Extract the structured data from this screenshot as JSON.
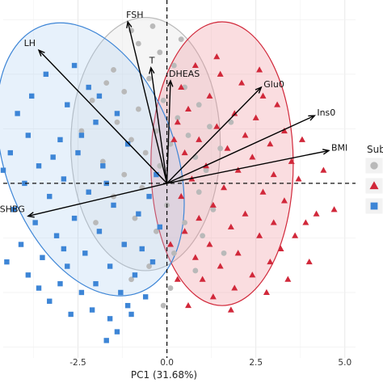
{
  "chart_data": {
    "type": "scatter",
    "subtype": "PCA biplot",
    "title": "",
    "xlabel": "PC1 (31.68%)",
    "ylabel": "",
    "xlim": [
      -4.6,
      5.3
    ],
    "ylim": [
      -4.0,
      4.2
    ],
    "x_ticks": [
      -2.5,
      0.0,
      2.5,
      5.0
    ],
    "x_tick_labels": [
      "-2.5",
      "0.0",
      "2.5",
      "5.0"
    ],
    "grid": true,
    "reference_lines": {
      "x": 0,
      "y": 0,
      "style": "dashed"
    },
    "legend": {
      "title": "Sub",
      "position": "right",
      "entries": 3
    },
    "colors": {
      "grey": "#b9b9b9",
      "red": "#d1283a",
      "blue": "#3d85d6"
    },
    "loadings": [
      {
        "label": "FSH",
        "x": -1.1,
        "y": 3.7
      },
      {
        "label": "LH",
        "x": -3.6,
        "y": 3.05
      },
      {
        "label": "T",
        "x": -0.45,
        "y": 2.65
      },
      {
        "label": "DHEAS",
        "x": 0.1,
        "y": 2.35
      },
      {
        "label": "Glu0",
        "x": 2.65,
        "y": 2.2
      },
      {
        "label": "Ins0",
        "x": 4.15,
        "y": 1.55
      },
      {
        "label": "BMI",
        "x": 4.55,
        "y": 0.75
      },
      {
        "label": "SHBG",
        "x": -3.9,
        "y": -0.75
      }
    ],
    "ellipses": [
      {
        "group": "grey",
        "cx": -0.6,
        "cy": 0.9,
        "rx": 2.1,
        "ry": 2.9,
        "angle": 0
      },
      {
        "group": "red",
        "cx": 1.55,
        "cy": 0.45,
        "rx": 2.0,
        "ry": 3.25,
        "angle": 0
      },
      {
        "group": "blue",
        "cx": -2.15,
        "cy": 0.55,
        "rx": 2.4,
        "ry": 3.25,
        "angle": -20
      }
    ],
    "series": [
      {
        "group": "grey",
        "marker": "circle",
        "points": [
          [
            -1.0,
            3.5
          ],
          [
            -0.8,
            3.2
          ],
          [
            -0.2,
            3.0
          ],
          [
            0.2,
            2.7
          ],
          [
            -1.5,
            2.6
          ],
          [
            -0.5,
            2.4
          ],
          [
            0.5,
            2.2
          ],
          [
            -1.2,
            2.1
          ],
          [
            -0.1,
            1.9
          ],
          [
            0.9,
            1.8
          ],
          [
            -0.8,
            1.7
          ],
          [
            0.3,
            1.5
          ],
          [
            -1.4,
            1.4
          ],
          [
            1.2,
            1.3
          ],
          [
            -0.3,
            1.2
          ],
          [
            0.6,
            1.1
          ],
          [
            -1.0,
            1.0
          ],
          [
            0.1,
            0.9
          ],
          [
            1.5,
            0.8
          ],
          [
            -0.6,
            0.7
          ],
          [
            0.8,
            0.6
          ],
          [
            -1.8,
            0.5
          ],
          [
            -0.2,
            0.4
          ],
          [
            1.1,
            0.3
          ],
          [
            -1.2,
            0.2
          ],
          [
            0.4,
            0.1
          ],
          [
            -0.7,
            -0.1
          ],
          [
            0.9,
            -0.2
          ],
          [
            -1.5,
            -0.3
          ],
          [
            0.0,
            -0.5
          ],
          [
            1.3,
            -0.6
          ],
          [
            -0.9,
            -0.8
          ],
          [
            0.5,
            -0.9
          ],
          [
            -0.3,
            -1.1
          ],
          [
            1.0,
            -1.2
          ],
          [
            -1.2,
            -1.4
          ],
          [
            0.2,
            -1.6
          ],
          [
            -0.5,
            -1.9
          ],
          [
            0.8,
            -2.0
          ],
          [
            -1.0,
            -2.2
          ],
          [
            0.1,
            -2.4
          ],
          [
            -2.1,
            1.9
          ],
          [
            -2.4,
            1.2
          ],
          [
            -1.7,
            2.3
          ],
          [
            1.8,
            1.4
          ],
          [
            -0.4,
            3.6
          ],
          [
            0.4,
            3.3
          ],
          [
            -2.0,
            -0.9
          ],
          [
            -0.1,
            -2.8
          ],
          [
            1.6,
            -1.6
          ]
        ]
      },
      {
        "group": "red",
        "marker": "triangle",
        "points": [
          [
            0.8,
            2.7
          ],
          [
            1.5,
            2.5
          ],
          [
            2.1,
            2.3
          ],
          [
            0.4,
            2.2
          ],
          [
            2.7,
            2.0
          ],
          [
            1.2,
            2.0
          ],
          [
            3.1,
            1.8
          ],
          [
            0.6,
            1.7
          ],
          [
            1.9,
            1.6
          ],
          [
            2.5,
            1.5
          ],
          [
            0.3,
            1.4
          ],
          [
            1.4,
            1.3
          ],
          [
            3.3,
            1.2
          ],
          [
            2.2,
            1.1
          ],
          [
            0.9,
            1.0
          ],
          [
            2.9,
            0.9
          ],
          [
            1.7,
            0.8
          ],
          [
            0.5,
            0.7
          ],
          [
            2.4,
            0.6
          ],
          [
            3.5,
            0.5
          ],
          [
            1.1,
            0.4
          ],
          [
            2.0,
            0.3
          ],
          [
            3.0,
            0.2
          ],
          [
            0.7,
            0.1
          ],
          [
            1.6,
            -0.1
          ],
          [
            2.7,
            -0.2
          ],
          [
            0.4,
            -0.3
          ],
          [
            3.3,
            -0.4
          ],
          [
            1.3,
            -0.5
          ],
          [
            2.2,
            -0.7
          ],
          [
            0.9,
            -0.8
          ],
          [
            3.0,
            -0.9
          ],
          [
            1.8,
            -1.0
          ],
          [
            0.5,
            -1.1
          ],
          [
            2.6,
            -1.2
          ],
          [
            1.2,
            -1.4
          ],
          [
            3.2,
            -1.5
          ],
          [
            2.0,
            -1.6
          ],
          [
            0.8,
            -1.7
          ],
          [
            2.9,
            -1.8
          ],
          [
            1.5,
            -1.9
          ],
          [
            2.4,
            -2.1
          ],
          [
            1.0,
            -2.2
          ],
          [
            3.4,
            -2.2
          ],
          [
            1.9,
            -2.4
          ],
          [
            2.8,
            -2.5
          ],
          [
            1.3,
            -2.6
          ],
          [
            0.6,
            -2.8
          ],
          [
            4.7,
            -0.6
          ],
          [
            4.2,
            -0.7
          ],
          [
            3.9,
            -0.9
          ],
          [
            3.7,
            0.1
          ],
          [
            4.0,
            -1.8
          ],
          [
            3.6,
            -1.2
          ],
          [
            0.3,
            -2.2
          ],
          [
            1.4,
            2.9
          ],
          [
            0.2,
            1.0
          ],
          [
            3.8,
            1.0
          ],
          [
            2.6,
            2.6
          ],
          [
            1.8,
            -2.9
          ],
          [
            4.4,
            0.3
          ],
          [
            0.1,
            -1.4
          ]
        ]
      },
      {
        "group": "blue",
        "marker": "square",
        "points": [
          [
            -3.4,
            2.5
          ],
          [
            -4.2,
            1.6
          ],
          [
            -3.9,
            1.1
          ],
          [
            -4.4,
            0.7
          ],
          [
            -3.6,
            0.4
          ],
          [
            -4.0,
            0.0
          ],
          [
            -3.3,
            -0.3
          ],
          [
            -4.3,
            -0.6
          ],
          [
            -3.7,
            -0.9
          ],
          [
            -3.1,
            -1.2
          ],
          [
            -4.1,
            -1.4
          ],
          [
            -3.5,
            -1.7
          ],
          [
            -2.8,
            -1.9
          ],
          [
            -3.9,
            -2.1
          ],
          [
            -3.0,
            -2.3
          ],
          [
            -2.4,
            -2.5
          ],
          [
            -3.3,
            -2.7
          ],
          [
            -2.1,
            -2.9
          ],
          [
            -1.6,
            -3.1
          ],
          [
            -2.7,
            -3.0
          ],
          [
            -1.4,
            -3.4
          ],
          [
            -1.0,
            -3.0
          ],
          [
            -0.6,
            -2.6
          ],
          [
            -2.2,
            2.2
          ],
          [
            -2.8,
            1.8
          ],
          [
            -2.0,
            1.4
          ],
          [
            -3.0,
            1.0
          ],
          [
            -2.5,
            0.7
          ],
          [
            -1.8,
            0.4
          ],
          [
            -2.9,
            0.1
          ],
          [
            -2.2,
            -0.2
          ],
          [
            -1.5,
            -0.5
          ],
          [
            -2.6,
            -0.8
          ],
          [
            -1.9,
            -1.1
          ],
          [
            -1.2,
            -1.4
          ],
          [
            -2.3,
            -1.6
          ],
          [
            -1.6,
            -1.9
          ],
          [
            -0.9,
            -2.1
          ],
          [
            -2.0,
            -2.3
          ],
          [
            -1.3,
            -2.5
          ],
          [
            -0.4,
            -1.8
          ],
          [
            -0.2,
            -1.0
          ],
          [
            -0.5,
            -0.3
          ],
          [
            -1.1,
            0.9
          ],
          [
            -1.4,
            1.6
          ],
          [
            -3.8,
            2.0
          ],
          [
            -2.6,
            2.7
          ],
          [
            -4.5,
            -1.8
          ],
          [
            -1.7,
            -3.6
          ],
          [
            -0.3,
            0.2
          ],
          [
            -0.8,
            -0.7
          ],
          [
            -1.7,
            0.0
          ],
          [
            -2.9,
            -1.5
          ],
          [
            -3.6,
            -2.4
          ],
          [
            -1.1,
            -2.8
          ],
          [
            -2.4,
            1.1
          ],
          [
            -3.2,
            0.6
          ],
          [
            -4.6,
            0.3
          ],
          [
            -0.7,
            -1.5
          ],
          [
            -1.9,
            2.0
          ]
        ]
      }
    ]
  }
}
